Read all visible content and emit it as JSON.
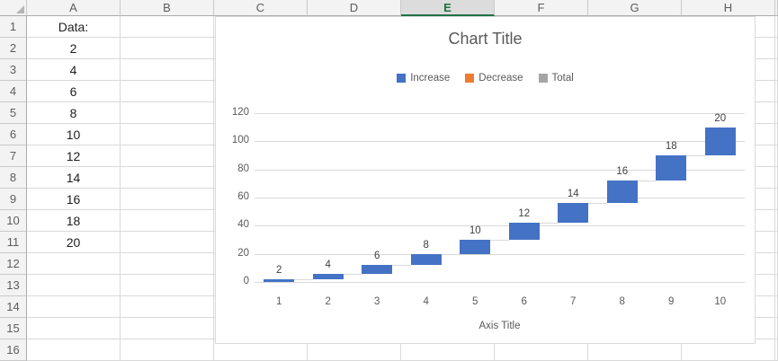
{
  "spreadsheet": {
    "column_headers": [
      "A",
      "B",
      "C",
      "D",
      "E",
      "F",
      "G",
      "H"
    ],
    "selected_column": "E",
    "row_count": 16,
    "a_column_values": [
      "Data:",
      "2",
      "4",
      "6",
      "8",
      "10",
      "12",
      "14",
      "16",
      "18",
      "20",
      "",
      "",
      "",
      "",
      ""
    ]
  },
  "chart_data": {
    "type": "bar",
    "subtype": "waterfall",
    "title": "Chart Title",
    "xlabel": "Axis Title",
    "categories": [
      "1",
      "2",
      "3",
      "4",
      "5",
      "6",
      "7",
      "8",
      "9",
      "10"
    ],
    "values": [
      2,
      4,
      6,
      8,
      10,
      12,
      14,
      16,
      18,
      20
    ],
    "cumulative_start": [
      0,
      2,
      6,
      12,
      20,
      30,
      42,
      56,
      72,
      90
    ],
    "cumulative_end": [
      2,
      6,
      12,
      20,
      30,
      42,
      56,
      72,
      90,
      110
    ],
    "data_labels": [
      "2",
      "4",
      "6",
      "8",
      "10",
      "12",
      "14",
      "16",
      "18",
      "20"
    ],
    "ylim": [
      0,
      120
    ],
    "yticks": [
      0,
      20,
      40,
      60,
      80,
      100,
      120
    ],
    "grid": true,
    "legend_position": "top",
    "legend": [
      {
        "label": "Increase",
        "color": "#4472C4"
      },
      {
        "label": "Decrease",
        "color": "#ED7D31"
      },
      {
        "label": "Total",
        "color": "#A5A5A5"
      }
    ],
    "series_color": "#4472C4",
    "gridline_color": "#D9D9D9",
    "text_color": "#595959"
  },
  "colors": {
    "selected_header_green": "#1E7145",
    "header_background": "#F3F3F3",
    "bar_blue": "#4472C4"
  }
}
